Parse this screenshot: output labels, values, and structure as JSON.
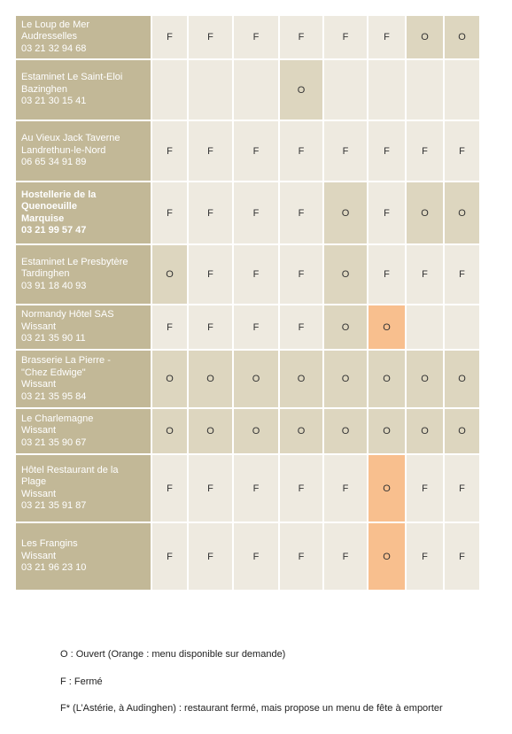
{
  "table": {
    "colors": {
      "name": "#c2b897",
      "F": "#eeeae0",
      "O": "#ddd6bf"
    },
    "rows": [
      {
        "name": [
          "Le Loup de Mer",
          "Audresselles",
          "03 21 32 94 68"
        ],
        "cells": [
          "F",
          "F",
          "F",
          "F",
          "F",
          "F",
          "O",
          "O"
        ]
      },
      {
        "name": [
          "Estaminet Le Saint-Eloi",
          "Bazinghen",
          "03 21 30 15 41"
        ],
        "cells": [
          null,
          null,
          null,
          "O",
          null,
          null,
          null,
          null
        ]
      },
      {
        "name": [
          "Au Vieux Jack Taverne",
          "Landrethun-le-Nord",
          "06 65 34 91 89"
        ],
        "cells": [
          "F",
          "F",
          "F",
          "F",
          "F",
          "F",
          "F",
          "F"
        ]
      },
      {
        "name": [
          "Hostellerie de la",
          "Quenoeuille",
          "Marquise",
          "03 21 99 57 47"
        ],
        "bold": true,
        "cells": [
          "F",
          "F",
          "F",
          "F",
          "O",
          "F",
          "O",
          "O"
        ]
      },
      {
        "name": [
          "Estaminet Le Presbytère",
          "Tardinghen",
          "03 91 18 40 93"
        ],
        "cells": [
          "O",
          "F",
          "F",
          "F",
          "O",
          "F",
          "F",
          "F"
        ]
      },
      {
        "name": [
          "Normandy Hôtel SAS",
          "Wissant",
          "03 21 35 90 11"
        ],
        "cells": [
          "F",
          "F",
          "F",
          "F",
          "O",
          {
            "text": "O",
            "color": "#f8bf8e"
          },
          null,
          null
        ]
      },
      {
        "name": [
          "Brasserie La Pierre -",
          "\"Chez Edwige\"",
          "Wissant",
          "03 21 35 95 84"
        ],
        "cells": [
          "O",
          "O",
          "O",
          "O",
          "O",
          "O",
          "O",
          "O"
        ]
      },
      {
        "name": [
          "Le Charlemagne",
          "Wissant",
          "03 21 35 90 67"
        ],
        "cells": [
          "O",
          "O",
          "O",
          "O",
          "O",
          "O",
          "O",
          "O"
        ]
      },
      {
        "name": [
          "Hôtel Restaurant de la",
          "Plage",
          "Wissant",
          "03 21 35 91 87"
        ],
        "cells": [
          "F",
          "F",
          "F",
          "F",
          "F",
          {
            "text": "O",
            "color": "#f8bf8e"
          },
          "F",
          "F"
        ]
      },
      {
        "name": [
          "Les Frangins",
          "Wissant",
          "03 21 96 23 10"
        ],
        "cells": [
          "F",
          "F",
          "F",
          "F",
          "F",
          {
            "text": "O",
            "color": "#f8bf8e"
          },
          "F",
          "F"
        ]
      }
    ]
  },
  "legend": [
    "O : Ouvert (Orange : menu disponible sur demande)",
    "F : Fermé",
    "F* (L’Astérie, à Audinghen) : restaurant fermé, mais propose un menu de fête à emporter"
  ]
}
